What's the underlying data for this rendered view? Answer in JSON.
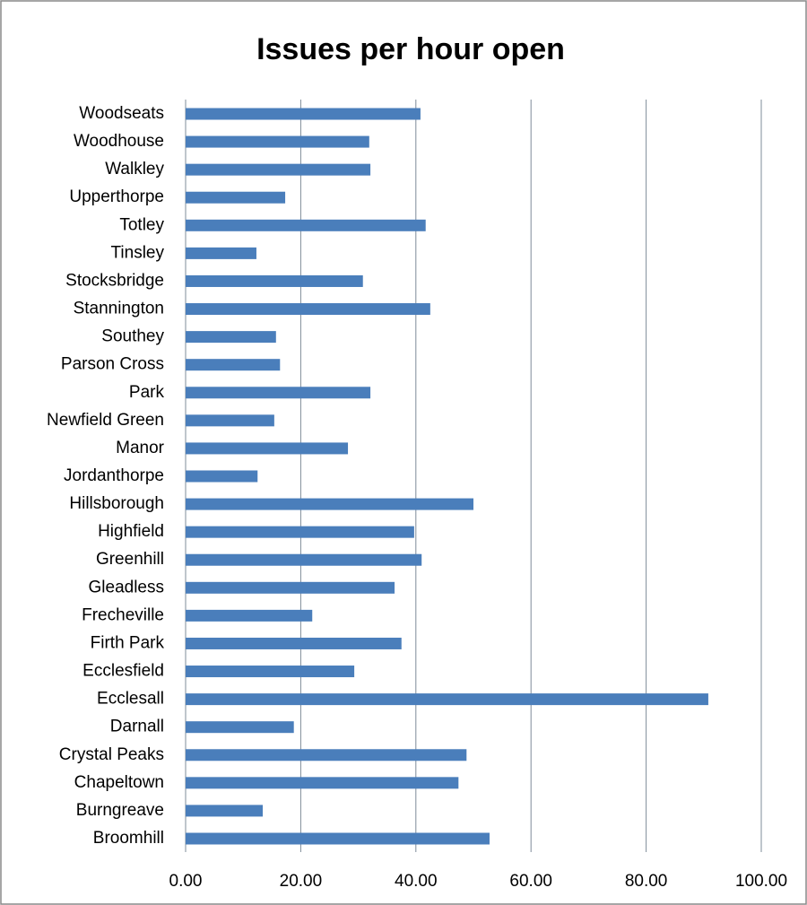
{
  "chart_data": {
    "type": "barh",
    "title": "Issues per hour open",
    "categories": [
      "Woodseats",
      "Woodhouse",
      "Walkley",
      "Upperthorpe",
      "Totley",
      "Tinsley",
      "Stocksbridge",
      "Stannington",
      "Southey",
      "Parson Cross",
      "Park",
      "Newfield Green",
      "Manor",
      "Jordanthorpe",
      "Hillsborough",
      "Highfield",
      "Greenhill",
      "Gleadless",
      "Frecheville",
      "Firth Park",
      "Ecclesfield",
      "Ecclesall",
      "Darnall",
      "Crystal Peaks",
      "Chapeltown",
      "Burngreave",
      "Broomhill"
    ],
    "values": [
      40.8,
      31.9,
      32.1,
      17.3,
      41.7,
      12.3,
      30.8,
      42.5,
      15.7,
      16.4,
      32.1,
      15.4,
      28.2,
      12.5,
      50.0,
      39.7,
      41.0,
      36.3,
      22.0,
      37.5,
      29.3,
      90.8,
      18.8,
      48.8,
      47.4,
      13.4,
      52.8
    ],
    "color": "#4a7ebb",
    "xlim": [
      0,
      100
    ],
    "xticks": [
      {
        "value": 0,
        "label": "0.00"
      },
      {
        "value": 20,
        "label": "20.00"
      },
      {
        "value": 40,
        "label": "40.00"
      },
      {
        "value": 60,
        "label": "60.00"
      },
      {
        "value": 80,
        "label": "80.00"
      },
      {
        "value": 100,
        "label": "100.00"
      }
    ],
    "grid": true
  }
}
